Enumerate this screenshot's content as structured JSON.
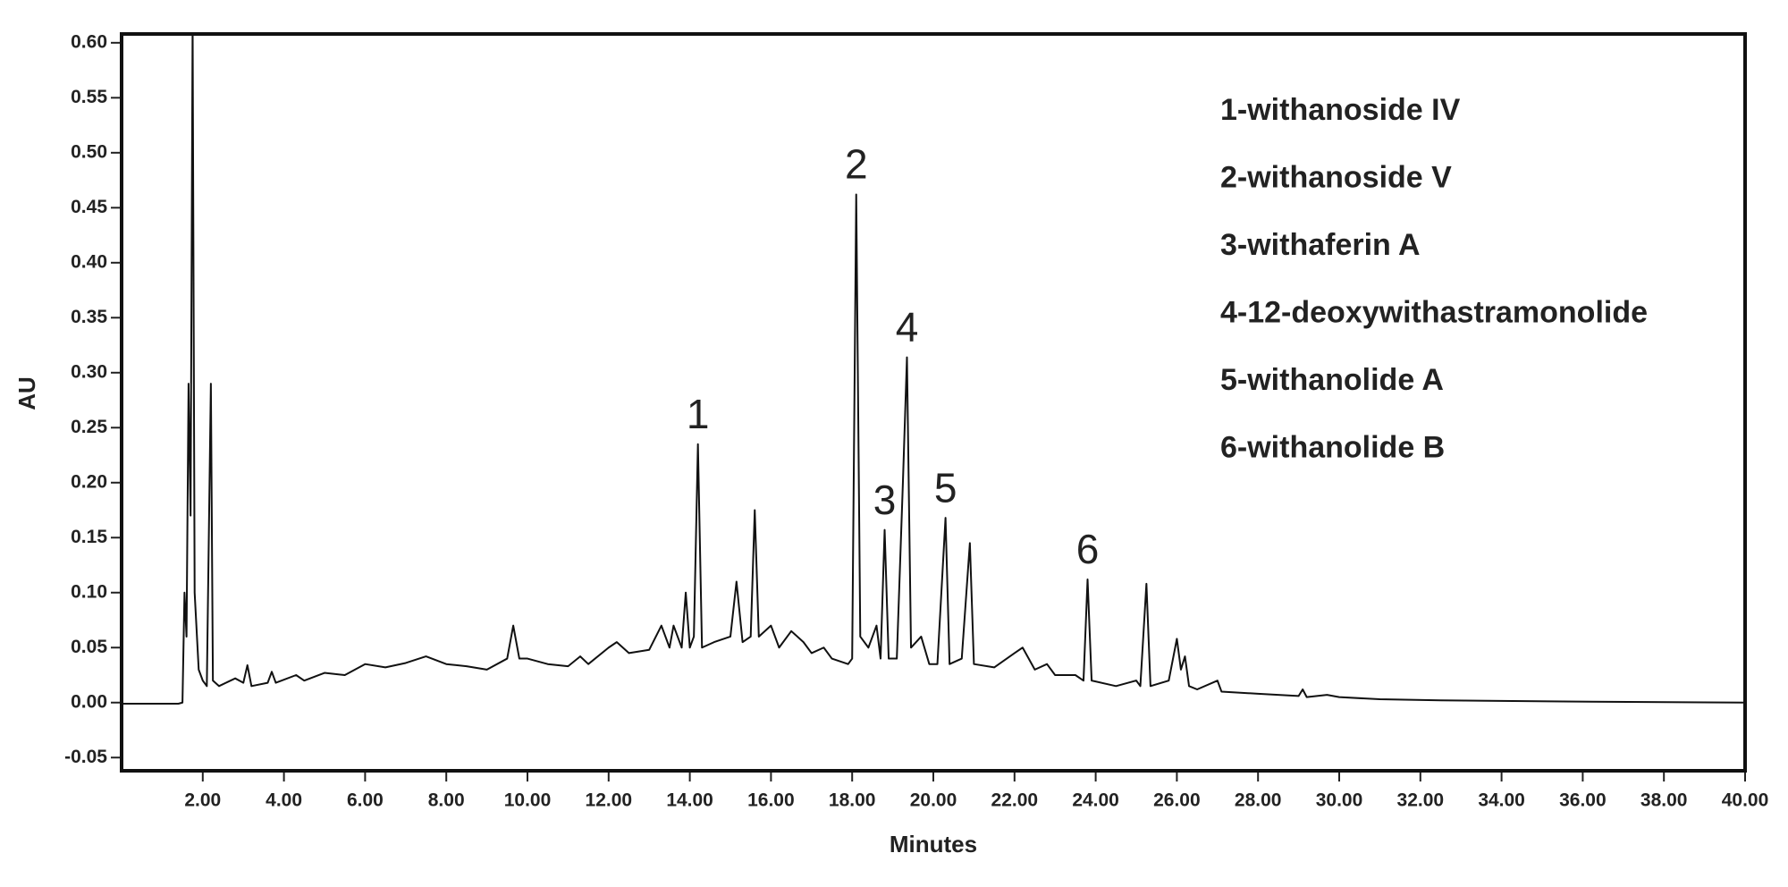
{
  "chart_data": {
    "type": "line",
    "xlabel": "Minutes",
    "ylabel": "AU",
    "color": "#111111",
    "xlim": [
      0,
      40
    ],
    "ylim": [
      -0.062,
      0.608
    ],
    "xticks": [
      {
        "value": 2,
        "label": "2.00"
      },
      {
        "value": 4,
        "label": "4.00"
      },
      {
        "value": 6,
        "label": "6.00"
      },
      {
        "value": 8,
        "label": "8.00"
      },
      {
        "value": 10,
        "label": "10.00"
      },
      {
        "value": 12,
        "label": "12.00"
      },
      {
        "value": 14,
        "label": "14.00"
      },
      {
        "value": 16,
        "label": "16.00"
      },
      {
        "value": 18,
        "label": "18.00"
      },
      {
        "value": 20,
        "label": "20.00"
      },
      {
        "value": 22,
        "label": "22.00"
      },
      {
        "value": 24,
        "label": "24.00"
      },
      {
        "value": 26,
        "label": "26.00"
      },
      {
        "value": 28,
        "label": "28.00"
      },
      {
        "value": 30,
        "label": "30.00"
      },
      {
        "value": 32,
        "label": "32.00"
      },
      {
        "value": 34,
        "label": "34.00"
      },
      {
        "value": 36,
        "label": "36.00"
      },
      {
        "value": 38,
        "label": "38.00"
      },
      {
        "value": 40,
        "label": "40.00"
      }
    ],
    "yticks": [
      {
        "value": -0.05,
        "label": "-0.05"
      },
      {
        "value": 0,
        "label": "0.00"
      },
      {
        "value": 0.05,
        "label": "0.05"
      },
      {
        "value": 0.1,
        "label": "0.10"
      },
      {
        "value": 0.15,
        "label": "0.15"
      },
      {
        "value": 0.2,
        "label": "0.20"
      },
      {
        "value": 0.25,
        "label": "0.25"
      },
      {
        "value": 0.3,
        "label": "0.30"
      },
      {
        "value": 0.35,
        "label": "0.35"
      },
      {
        "value": 0.4,
        "label": "0.40"
      },
      {
        "value": 0.45,
        "label": "0.45"
      },
      {
        "value": 0.5,
        "label": "0.50"
      },
      {
        "value": 0.55,
        "label": "0.55"
      },
      {
        "value": 0.6,
        "label": "0.60"
      }
    ],
    "x": [
      0,
      1.4,
      1.5,
      1.55,
      1.6,
      1.65,
      1.7,
      1.75,
      1.8,
      1.9,
      2.0,
      2.1,
      2.2,
      2.25,
      2.4,
      2.8,
      3.0,
      3.1,
      3.2,
      3.6,
      3.7,
      3.8,
      4.3,
      4.5,
      5.0,
      5.5,
      6.0,
      6.5,
      7.0,
      7.5,
      8.0,
      8.5,
      9.0,
      9.5,
      9.65,
      9.8,
      10.0,
      10.5,
      11.0,
      11.3,
      11.5,
      12.0,
      12.2,
      12.5,
      13.0,
      13.3,
      13.5,
      13.6,
      13.8,
      13.9,
      14.0,
      14.1,
      14.2,
      14.3,
      14.6,
      15.0,
      15.15,
      15.3,
      15.5,
      15.6,
      15.7,
      16.0,
      16.2,
      16.5,
      16.8,
      17.0,
      17.3,
      17.5,
      17.9,
      18.0,
      18.1,
      18.2,
      18.4,
      18.6,
      18.7,
      18.8,
      18.9,
      19.1,
      19.25,
      19.35,
      19.45,
      19.7,
      19.9,
      20.1,
      20.3,
      20.4,
      20.7,
      20.9,
      21.0,
      21.5,
      22.0,
      22.2,
      22.5,
      22.8,
      23.0,
      23.5,
      23.7,
      23.8,
      23.9,
      24.5,
      25.0,
      25.1,
      25.25,
      25.35,
      25.8,
      26.0,
      26.1,
      26.2,
      26.3,
      26.5,
      27.0,
      27.1,
      28.0,
      29.0,
      29.1,
      29.2,
      29.7,
      30.0,
      31.0,
      32.5,
      35.5,
      40.0
    ],
    "values": [
      -0.001,
      -0.001,
      0.0,
      0.1,
      0.06,
      0.29,
      0.17,
      0.62,
      0.1,
      0.03,
      0.02,
      0.015,
      0.29,
      0.02,
      0.015,
      0.022,
      0.018,
      0.034,
      0.015,
      0.018,
      0.028,
      0.018,
      0.025,
      0.02,
      0.027,
      0.025,
      0.035,
      0.032,
      0.036,
      0.042,
      0.035,
      0.033,
      0.03,
      0.04,
      0.07,
      0.04,
      0.04,
      0.035,
      0.033,
      0.042,
      0.035,
      0.05,
      0.055,
      0.045,
      0.048,
      0.07,
      0.05,
      0.07,
      0.05,
      0.1,
      0.05,
      0.06,
      0.235,
      0.05,
      0.055,
      0.06,
      0.11,
      0.055,
      0.06,
      0.175,
      0.06,
      0.07,
      0.05,
      0.065,
      0.055,
      0.045,
      0.05,
      0.04,
      0.035,
      0.04,
      0.462,
      0.06,
      0.05,
      0.07,
      0.04,
      0.157,
      0.04,
      0.04,
      0.2,
      0.314,
      0.05,
      0.06,
      0.035,
      0.035,
      0.168,
      0.035,
      0.04,
      0.145,
      0.035,
      0.032,
      0.045,
      0.05,
      0.03,
      0.035,
      0.025,
      0.025,
      0.02,
      0.112,
      0.02,
      0.015,
      0.02,
      0.015,
      0.108,
      0.015,
      0.02,
      0.058,
      0.03,
      0.042,
      0.015,
      0.012,
      0.02,
      0.01,
      0.008,
      0.006,
      0.012,
      0.005,
      0.007,
      0.005,
      0.003,
      0.002,
      0.001,
      0.0
    ],
    "peak_labels": [
      {
        "text": "1",
        "x": 14.2,
        "y": 0.235
      },
      {
        "text": "2",
        "x": 18.1,
        "y": 0.462
      },
      {
        "text": "3",
        "x": 18.8,
        "y": 0.157
      },
      {
        "text": "4",
        "x": 19.35,
        "y": 0.314
      },
      {
        "text": "5",
        "x": 20.3,
        "y": 0.168
      },
      {
        "text": "6",
        "x": 23.8,
        "y": 0.112
      }
    ],
    "peak_key": [
      "1-withanoside IV",
      "2-withanoside V",
      "3-withaferin A",
      "4-12-deoxywithastramonolide",
      "5-withanolide A",
      "6-withanolide B"
    ]
  }
}
